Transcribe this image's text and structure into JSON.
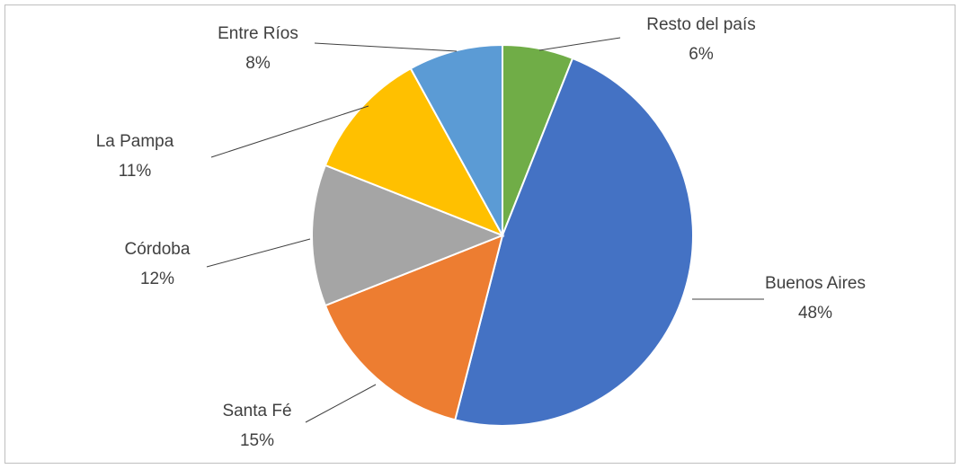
{
  "chart_data": {
    "type": "pie",
    "categories": [
      "Resto del país",
      "Buenos Aires",
      "Santa Fé",
      "Córdoba",
      "La Pampa",
      "Entre Ríos"
    ],
    "values": [
      6,
      48,
      15,
      12,
      11,
      8
    ],
    "value_labels": [
      "6%",
      "48%",
      "15%",
      "12%",
      "11%",
      "8%"
    ],
    "colors": [
      "#70ad47",
      "#4472c4",
      "#ed7d31",
      "#a5a5a5",
      "#ffc000",
      "#5b9bd5"
    ]
  }
}
